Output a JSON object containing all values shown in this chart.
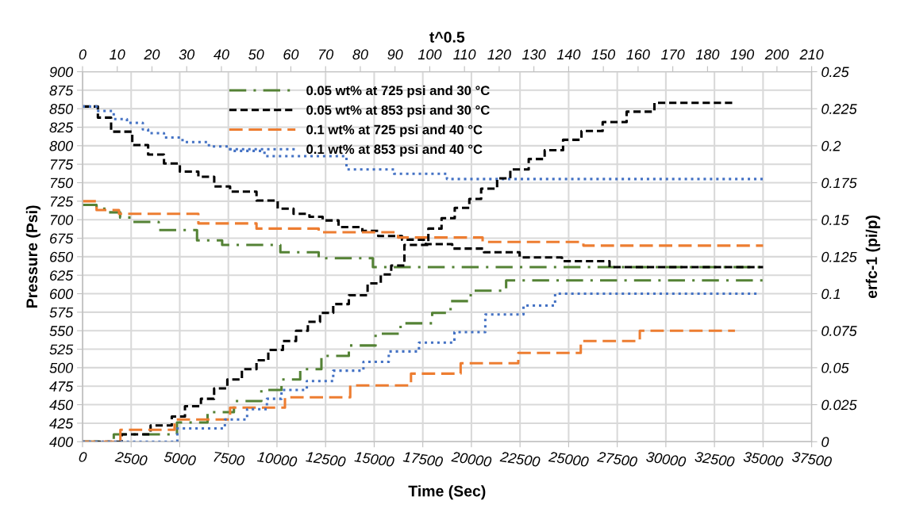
{
  "chart_data": [
    {
      "type": "step",
      "xlabel": "Time (Sec)",
      "ylabel": "Pressure (Psi)",
      "xlim": [
        0,
        37500
      ],
      "xticks": [
        0,
        2500,
        5000,
        7500,
        10000,
        12500,
        15000,
        17500,
        20000,
        22500,
        25000,
        27500,
        30000,
        32500,
        35000,
        37500
      ],
      "ylim": [
        400,
        900
      ],
      "yticks": [
        400,
        425,
        450,
        475,
        500,
        525,
        550,
        575,
        600,
        625,
        650,
        675,
        700,
        725,
        750,
        775,
        800,
        825,
        850,
        875,
        900
      ],
      "grid": true,
      "legend": "top",
      "marker": "none",
      "series": [
        {
          "name": "0.05 wt% at 725 psi and 30 °C",
          "color": "#548235",
          "line_style": "dashdot",
          "x": [
            0,
            721,
            1265,
            1932,
            2558,
            3918,
            5889,
            7181,
            10173,
            12146,
            14934,
            35000
          ],
          "values": [
            720,
            715,
            710,
            703,
            697,
            686,
            672,
            666,
            656,
            648,
            636,
            636
          ]
        },
        {
          "name": "0.05 wt% at 853 psi and 30 °C",
          "color": "#000000",
          "line_style": "dashed",
          "x": [
            0,
            789,
            1469,
            2558,
            3374,
            4190,
            5006,
            5957,
            6773,
            7589,
            8948,
            10037,
            10853,
            11669,
            12350,
            13166,
            14390,
            15206,
            16430,
            17654,
            19013,
            20645,
            22481,
            24657,
            27105,
            35000
          ],
          "values": [
            853,
            838,
            819,
            801,
            788,
            776,
            765,
            758,
            745,
            738,
            726,
            715,
            708,
            704,
            699,
            690,
            685,
            678,
            673,
            667,
            661,
            656,
            649,
            644,
            636,
            636
          ]
        },
        {
          "name": "0.1 wt% at 725 psi and 40 °C",
          "color": "#ed7d31",
          "line_style": "long_dashed",
          "x": [
            0,
            721,
            1877,
            5957,
            8948,
            12146,
            16226,
            20576,
            25758,
            35000
          ],
          "values": [
            725,
            713,
            708,
            695,
            688,
            683,
            676,
            670,
            665,
            665
          ]
        },
        {
          "name": "0.1 wt% at 853 psi and 40 °C",
          "color": "#4472c4",
          "line_style": "dotted",
          "x": [
            0,
            721,
            1605,
            2285,
            3101,
            3374,
            4190,
            5142,
            6500,
            7589,
            9357,
            13574,
            16022,
            18742,
            35000
          ],
          "values": [
            853,
            847,
            836,
            831,
            822,
            817,
            811,
            805,
            799,
            793,
            786,
            768,
            762,
            755,
            755
          ]
        }
      ]
    },
    {
      "type": "step",
      "xlabel": "t^0.5",
      "ylabel": "erfc-1 (pi/p)",
      "xlim": [
        0,
        210
      ],
      "xticks": [
        0,
        10,
        20,
        30,
        40,
        50,
        60,
        70,
        80,
        90,
        100,
        110,
        120,
        130,
        140,
        150,
        160,
        170,
        180,
        190,
        200,
        210
      ],
      "ylim": [
        0,
        0.25
      ],
      "yticks": [
        0,
        0.025,
        0.05,
        0.075,
        0.1,
        0.125,
        0.15,
        0.175,
        0.2,
        0.225,
        0.25
      ],
      "marker": "none",
      "series": [
        {
          "color": "#548235",
          "line_style": "dashdot",
          "x": [
            0,
            9.0,
            27.2,
            36.0,
            43.6,
            51.5,
            57.3,
            62.7,
            68.8,
            76.7,
            84.4,
            91.6,
            100.7,
            106,
            111.8,
            122,
            196.5
          ],
          "values": [
            0,
            0.005,
            0.013,
            0.02,
            0.0275,
            0.035,
            0.042,
            0.049,
            0.058,
            0.065,
            0.073,
            0.08,
            0.087,
            0.095,
            0.102,
            0.109,
            0.109
          ]
        },
        {
          "color": "#000000",
          "line_style": "dashed",
          "x": [
            0,
            11.3,
            19.6,
            25.7,
            29.5,
            34.1,
            37.9,
            41.7,
            45.9,
            50.1,
            53.5,
            57.7,
            61.5,
            64.9,
            68.4,
            72.2,
            76.7,
            82.1,
            85.9,
            88.9,
            92.7,
            99.6,
            103.4,
            107.2,
            111.4,
            114.8,
            119.4,
            123.2,
            128.5,
            133.1,
            138.4,
            143.7,
            149.8,
            156.7,
            164.7,
            188
          ],
          "values": [
            0,
            0.005,
            0.011,
            0.017,
            0.024,
            0.029,
            0.036,
            0.042,
            0.049,
            0.055,
            0.062,
            0.068,
            0.075,
            0.081,
            0.087,
            0.093,
            0.099,
            0.107,
            0.113,
            0.119,
            0.133,
            0.144,
            0.151,
            0.158,
            0.164,
            0.171,
            0.178,
            0.184,
            0.191,
            0.197,
            0.204,
            0.21,
            0.216,
            0.223,
            0.229,
            0.229
          ]
        },
        {
          "color": "#ed7d31",
          "line_style": "long_dashed",
          "x": [
            0,
            10.9,
            26.5,
            42.5,
            58.3,
            77.1,
            94.6,
            108.9,
            125.5,
            143.5,
            160.5,
            187.9
          ],
          "values": [
            0,
            0.008,
            0.015,
            0.023,
            0.03,
            0.038,
            0.046,
            0.053,
            0.06,
            0.068,
            0.075,
            0.075
          ]
        },
        {
          "color": "#4472c4",
          "line_style": "dotted",
          "x": [
            0,
            27.3,
            41.0,
            47.4,
            53.1,
            57.3,
            64.6,
            72.2,
            80.9,
            88.2,
            96.9,
            107.1,
            116,
            127,
            136.1,
            194.4
          ],
          "values": [
            0,
            0.009,
            0.015,
            0.022,
            0.029,
            0.035,
            0.041,
            0.048,
            0.054,
            0.061,
            0.067,
            0.074,
            0.086,
            0.092,
            0.1,
            0.1
          ]
        }
      ]
    }
  ]
}
